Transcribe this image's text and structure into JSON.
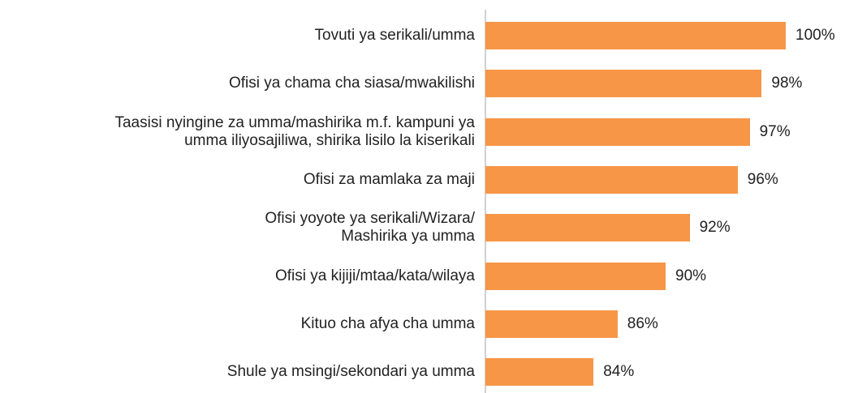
{
  "chart_data": {
    "type": "hbar",
    "categories": [
      "Tovuti ya serikali/umma",
      "Ofisi ya chama cha siasa/mwakilishi",
      "Taasisi nyingine za umma/mashirika m.f. kampuni ya\numma iliyosajiliwa, shirika lisilo la kiserikali",
      "Ofisi za mamlaka za maji",
      "Ofisi yoyote ya serikali/Wizara/\nMashirika ya umma",
      "Ofisi ya kijiji/mtaa/kata/wilaya",
      "Kituo cha afya cha umma",
      "Shule ya msingi/sekondari ya umma"
    ],
    "values": [
      100,
      98,
      97,
      96,
      92,
      90,
      86,
      84
    ],
    "value_labels": [
      "100%",
      "98%",
      "97%",
      "96%",
      "92%",
      "90%",
      "86%",
      "84%"
    ],
    "color": "#f79646",
    "xlim": [
      75,
      100
    ]
  }
}
